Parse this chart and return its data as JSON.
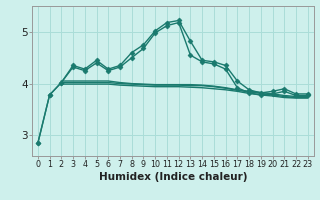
{
  "x": [
    0,
    1,
    2,
    3,
    4,
    5,
    6,
    7,
    8,
    9,
    10,
    11,
    12,
    13,
    14,
    15,
    16,
    17,
    18,
    19,
    20,
    21,
    22,
    23
  ],
  "line1": [
    2.85,
    3.78,
    4.02,
    4.35,
    4.28,
    4.45,
    4.28,
    4.35,
    4.6,
    4.75,
    5.02,
    5.18,
    5.22,
    4.82,
    4.45,
    4.42,
    4.35,
    4.05,
    3.88,
    3.82,
    3.85,
    3.9,
    3.8,
    3.8
  ],
  "line2": [
    2.85,
    3.78,
    4.02,
    4.32,
    4.25,
    4.4,
    4.25,
    4.32,
    4.5,
    4.68,
    4.98,
    5.12,
    5.18,
    4.55,
    4.42,
    4.38,
    4.28,
    3.92,
    3.82,
    3.78,
    3.8,
    3.85,
    3.77,
    3.77
  ],
  "line3": [
    null,
    null,
    4.05,
    4.05,
    4.05,
    4.05,
    4.05,
    4.02,
    4.0,
    3.99,
    3.98,
    3.98,
    3.98,
    3.98,
    3.97,
    3.95,
    3.92,
    3.88,
    3.85,
    3.83,
    3.8,
    3.77,
    3.75,
    3.75
  ],
  "line4": [
    null,
    null,
    4.02,
    4.02,
    4.02,
    4.02,
    4.02,
    4.0,
    3.99,
    3.98,
    3.97,
    3.97,
    3.97,
    3.96,
    3.96,
    3.94,
    3.91,
    3.87,
    3.84,
    3.81,
    3.78,
    3.75,
    3.73,
    3.73
  ],
  "line5": [
    null,
    null,
    3.99,
    3.99,
    3.99,
    3.99,
    3.99,
    3.97,
    3.96,
    3.95,
    3.94,
    3.94,
    3.94,
    3.93,
    3.92,
    3.9,
    3.88,
    3.85,
    3.81,
    3.78,
    3.76,
    3.73,
    3.72,
    3.72
  ],
  "line_color": "#1a7a6e",
  "bg_color": "#cef0ec",
  "grid_color": "#aaddd8",
  "ylim": [
    2.6,
    5.5
  ],
  "yticks": [
    3,
    4,
    5
  ],
  "xlabel": "Humidex (Indice chaleur)",
  "xtick_labels": [
    "0",
    "1",
    "2",
    "3",
    "4",
    "5",
    "6",
    "7",
    "8",
    "9",
    "10",
    "11",
    "12",
    "13",
    "14",
    "15",
    "16",
    "17",
    "18",
    "19",
    "20",
    "21",
    "22",
    "23"
  ],
  "marker": "D",
  "markersize": 2.5,
  "linewidth": 1.0,
  "title_color": "#333333"
}
